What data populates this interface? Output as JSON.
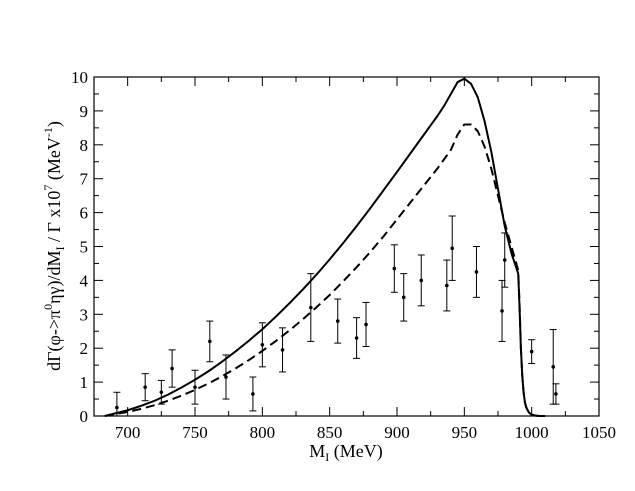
{
  "chart_data": {
    "type": "line",
    "title": "",
    "xlabel": {
      "main": "M",
      "sub": "I",
      "units": " (MeV)"
    },
    "ylabel": {
      "p1": "dΓ(φ->π",
      "sup0": "0",
      "p2": "ηγ)/dM",
      "subI": "I",
      "p3": " / Γ  x10",
      "sup7": "7",
      "p4": " (MeV",
      "supm1": "-1",
      "p5": ")"
    },
    "xlim": [
      675,
      1050
    ],
    "ylim": [
      0,
      10
    ],
    "x_ticks": [
      700,
      750,
      800,
      850,
      900,
      950,
      1000,
      1050
    ],
    "y_ticks": [
      0,
      1,
      2,
      3,
      4,
      5,
      6,
      7,
      8,
      9,
      10
    ],
    "series": [
      {
        "name": "solid curve",
        "style": "solid",
        "x": [
          683,
          690,
          700,
          710,
          720,
          730,
          740,
          750,
          760,
          770,
          780,
          790,
          800,
          810,
          820,
          830,
          840,
          850,
          860,
          870,
          880,
          890,
          900,
          910,
          920,
          930,
          935,
          940,
          945,
          950,
          955,
          960,
          965,
          970,
          975,
          980,
          985,
          990,
          991,
          992,
          993,
          994,
          995,
          996,
          998,
          1000,
          1003,
          1006,
          1010
        ],
        "y": [
          0.0,
          0.07,
          0.17,
          0.3,
          0.45,
          0.63,
          0.84,
          1.07,
          1.32,
          1.6,
          1.9,
          2.22,
          2.56,
          2.93,
          3.32,
          3.73,
          4.16,
          4.62,
          5.1,
          5.6,
          6.12,
          6.66,
          7.2,
          7.75,
          8.3,
          8.85,
          9.15,
          9.5,
          9.85,
          9.95,
          9.8,
          9.4,
          8.7,
          7.8,
          6.7,
          5.6,
          4.8,
          4.2,
          3.2,
          2.0,
          1.2,
          0.7,
          0.4,
          0.25,
          0.1,
          0.04,
          0.01,
          0.0,
          0.0
        ]
      },
      {
        "name": "dashed curve",
        "style": "dashed",
        "x": [
          683,
          690,
          700,
          710,
          720,
          730,
          740,
          750,
          760,
          770,
          780,
          790,
          800,
          810,
          820,
          830,
          840,
          850,
          860,
          870,
          880,
          890,
          900,
          910,
          920,
          930,
          940,
          945,
          950,
          955,
          960,
          965,
          970,
          975,
          980,
          985,
          990,
          991,
          992,
          993,
          994,
          995,
          996,
          998,
          1000,
          1003,
          1006,
          1010
        ],
        "y": [
          0.0,
          0.05,
          0.12,
          0.21,
          0.32,
          0.45,
          0.6,
          0.77,
          0.96,
          1.17,
          1.4,
          1.65,
          1.92,
          2.21,
          2.52,
          2.85,
          3.2,
          3.57,
          3.97,
          4.39,
          4.83,
          5.3,
          5.8,
          6.3,
          6.8,
          7.3,
          7.85,
          8.3,
          8.6,
          8.6,
          8.4,
          7.95,
          7.3,
          6.5,
          5.7,
          5.0,
          4.3,
          3.3,
          2.0,
          1.2,
          0.7,
          0.4,
          0.25,
          0.1,
          0.04,
          0.01,
          0.0,
          0.0
        ]
      },
      {
        "name": "data",
        "style": "points",
        "x": [
          692,
          713,
          725,
          733,
          750,
          761,
          773,
          793,
          800,
          815,
          836,
          856,
          870,
          877,
          898,
          905,
          918,
          937,
          941,
          959,
          978,
          980,
          1000,
          1016,
          1018
        ],
        "y": [
          0.25,
          0.85,
          0.7,
          1.4,
          0.85,
          2.2,
          1.15,
          0.65,
          2.1,
          1.95,
          3.2,
          2.8,
          2.3,
          2.7,
          4.35,
          3.5,
          4.0,
          3.85,
          4.95,
          4.25,
          3.1,
          4.6,
          1.9,
          1.45,
          0.65
        ],
        "err": [
          0.45,
          0.4,
          0.35,
          0.55,
          0.5,
          0.6,
          0.65,
          0.5,
          0.65,
          0.65,
          1.0,
          0.65,
          0.6,
          0.65,
          0.7,
          0.7,
          0.75,
          0.75,
          0.95,
          0.75,
          0.9,
          0.8,
          0.35,
          1.1,
          0.3
        ]
      }
    ]
  }
}
